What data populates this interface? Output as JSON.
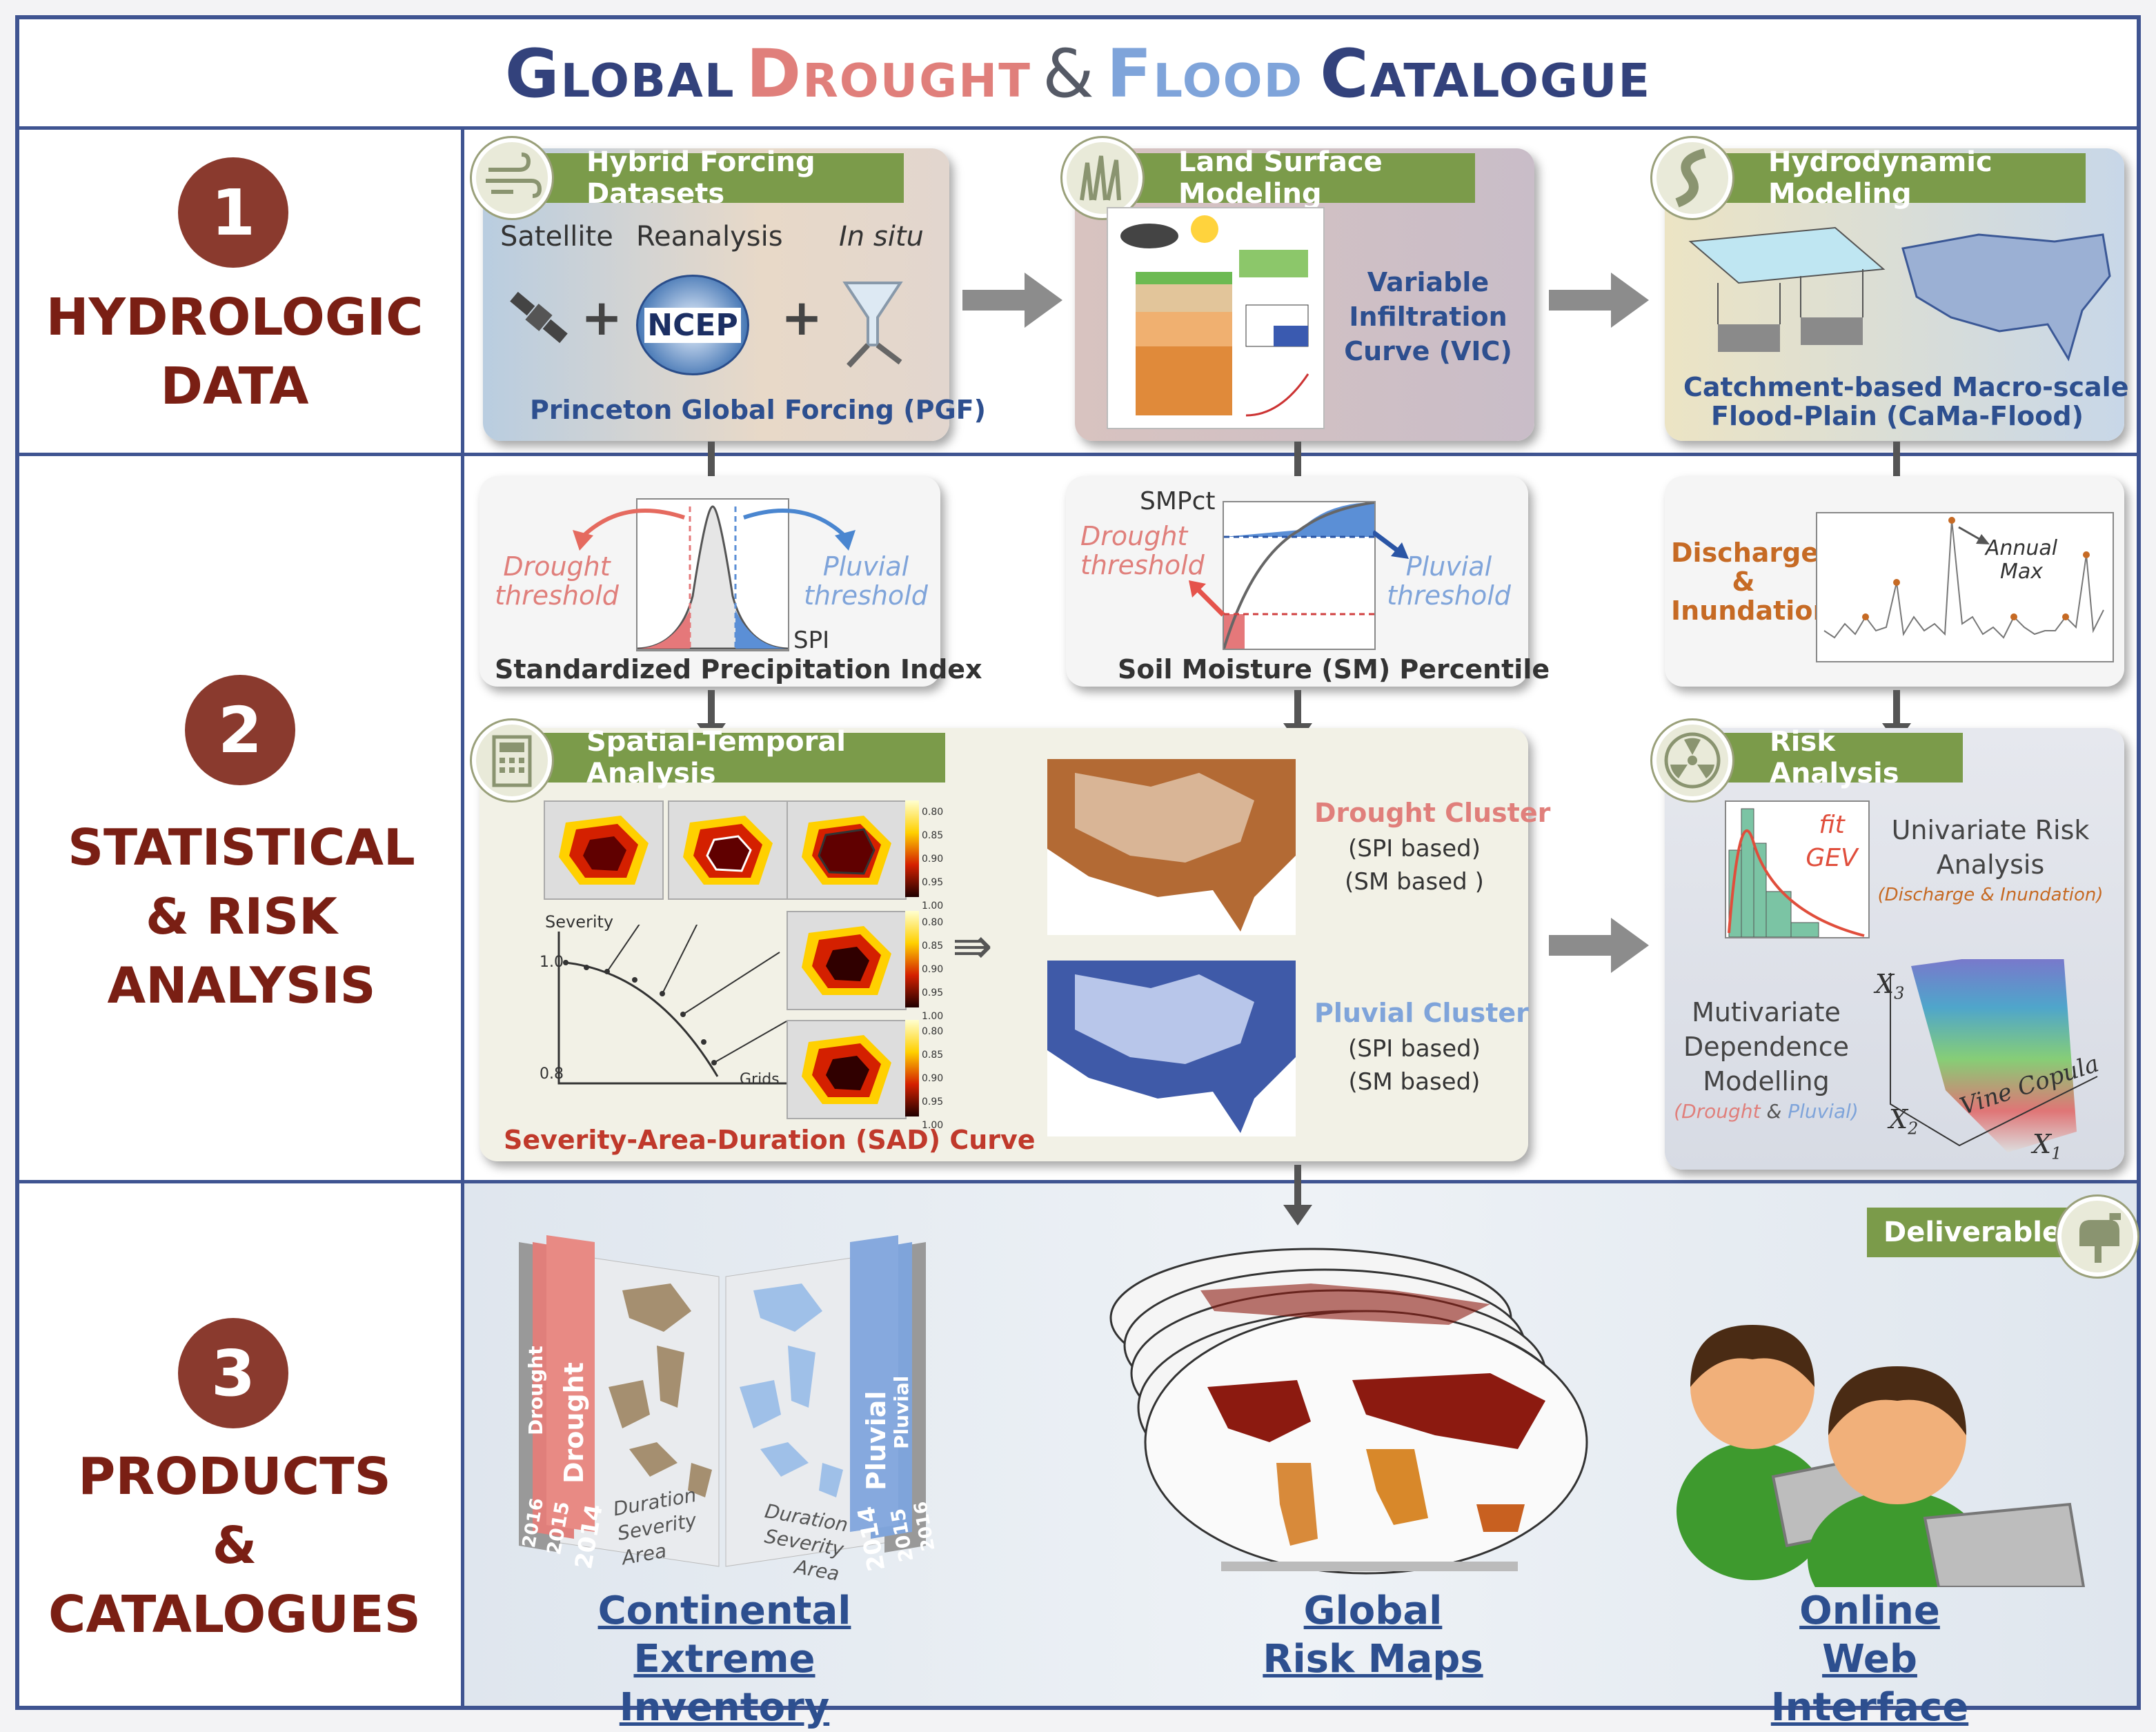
{
  "title": {
    "part1": "Global",
    "part2": "Drought",
    "amp": "&",
    "part3": "Flood",
    "part4": "Catalogue"
  },
  "sections": [
    {
      "number": "1",
      "label_line1": "HYDROLOGIC",
      "label_line2": "DATA"
    },
    {
      "number": "2",
      "label_line1": "STATISTICAL",
      "label_line2": "& RISK ANALYSIS"
    },
    {
      "number": "3",
      "label_line1": "PRODUCTS",
      "label_line2": "& CATALOGUES"
    }
  ],
  "forcing": {
    "tab": "Hybrid Forcing Datasets",
    "satellite": "Satellite",
    "reanalysis": "Reanalysis",
    "insitu": "In situ",
    "ncep": "NCEP",
    "plus": "+",
    "caption": "Princeton Global Forcing (PGF)",
    "icon": "wind-icon"
  },
  "lsm": {
    "tab": "Land Surface Modeling",
    "line1": "Variable",
    "line2": "Infiltration",
    "line3": "Curve (VIC)",
    "icon": "grass-icon"
  },
  "hydro": {
    "tab": "Hydrodynamic Modeling",
    "cap1": "Catchment-based Macro-scale",
    "cap2": "Flood-Plain (CaMa-Flood)",
    "icon": "river-icon"
  },
  "spi": {
    "drought1": "Drought",
    "drought2": "threshold",
    "pluvial1": "Pluvial",
    "pluvial2": "threshold",
    "axis": "SPI",
    "caption": "Standardized Precipitation Index"
  },
  "smp": {
    "axis": "SMPct",
    "drought1": "Drought",
    "drought2": "threshold",
    "pluvial1": "Pluvial",
    "pluvial2": "threshold",
    "caption": "Soil Moisture (SM) Percentile"
  },
  "discharge": {
    "line1": "Discharge",
    "line2": "&",
    "line3": "Inundation",
    "annual1": "Annual",
    "annual2": "Max"
  },
  "spatial": {
    "tab": "Spatial-Temporal Analysis",
    "severity": "Severity",
    "v1": "1.0",
    "v2": "0.8",
    "grids": "Grids",
    "caption": "Severity-Area-Duration (SAD) Curve",
    "colorbar": [
      "0.80",
      "0.85",
      "0.90",
      "0.95",
      "1.00"
    ],
    "icon": "calculator-icon"
  },
  "clusters": {
    "drought": "Drought Cluster",
    "pluvial": "Pluvial Cluster",
    "spi": "(SPI based)",
    "sm1": "(SM based )",
    "sm2": "(SM based)"
  },
  "risk": {
    "tab": "Risk Analysis",
    "fit": "fit",
    "gev": "GEV",
    "uni1": "Univariate Risk",
    "uni2": "Analysis",
    "uni3": "(Discharge & Inundation)",
    "multi1": "Mutivariate",
    "multi2": "Dependence",
    "multi3": "Modelling",
    "multi4a": "(Drought",
    "multi4b": "&",
    "multi4c": "Pluvial)",
    "x1": "X",
    "x2": "X",
    "x3": "X",
    "s1": "1",
    "s2": "2",
    "s3": "3",
    "vine": "Vine Copula",
    "icon": "radiation-icon"
  },
  "deliverables": {
    "tab": "Deliverables",
    "icon": "mailbox-icon"
  },
  "products": {
    "inv1": "Continental",
    "inv2": "Extreme Inventory",
    "map1": "Global",
    "map2": "Risk Maps",
    "web1": "Online",
    "web2": "Web Interface",
    "book_drought": "Drought",
    "book_pluvial": "Pluvial",
    "years": [
      "2014",
      "2015",
      "2016"
    ],
    "dur": "Duration",
    "sev": "Severity",
    "area": "Area"
  }
}
